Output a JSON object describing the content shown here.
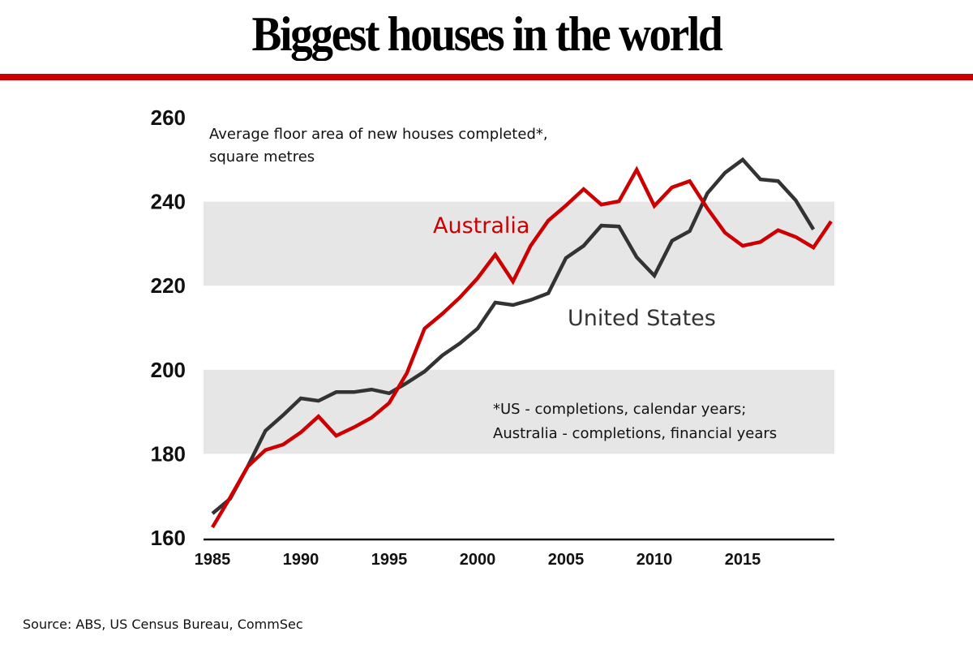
{
  "chart_data": {
    "type": "line",
    "title": "Biggest houses in the world",
    "subtitle": "Average floor area of new houses completed*, square metres",
    "xlabel": "",
    "ylabel": "square metres",
    "ylim": [
      160,
      260
    ],
    "xlim": [
      1985,
      2020
    ],
    "yticks": [
      160,
      180,
      200,
      220,
      240,
      260
    ],
    "xticks": [
      1985,
      1990,
      1995,
      2000,
      2005,
      2010,
      2015
    ],
    "grid": "alternating shaded bands 180-200 and 220-240",
    "legend": "inline labels",
    "series": [
      {
        "name": "Australia",
        "color": "#cc0000",
        "x": [
          1985,
          1986,
          1987,
          1988,
          1989,
          1990,
          1991,
          1992,
          1993,
          1994,
          1995,
          1996,
          1997,
          1998,
          1999,
          2000,
          2001,
          2002,
          2003,
          2004,
          2005,
          2006,
          2007,
          2008,
          2009,
          2010,
          2011,
          2012,
          2013,
          2014,
          2015,
          2016,
          2017,
          2018,
          2019,
          2020
        ],
        "values": [
          162.5,
          169.6,
          177.0,
          180.9,
          182.2,
          185.1,
          188.9,
          184.3,
          186.3,
          188.6,
          192.1,
          199.2,
          209.8,
          213.3,
          217.2,
          221.8,
          227.4,
          221.0,
          229.5,
          235.5,
          239.1,
          243.0,
          239.3,
          240.1,
          247.6,
          239.0,
          243.4,
          244.9,
          238.4,
          232.6,
          229.5,
          230.4,
          233.2,
          231.6,
          229.1,
          235.3
        ]
      },
      {
        "name": "United States",
        "color": "#333333",
        "x": [
          1985,
          1986,
          1987,
          1988,
          1989,
          1990,
          1991,
          1992,
          1993,
          1994,
          1995,
          1996,
          1997,
          1998,
          1999,
          2000,
          2001,
          2002,
          2003,
          2004,
          2005,
          2006,
          2007,
          2008,
          2009,
          2010,
          2011,
          2012,
          2013,
          2014,
          2015,
          2016,
          2017,
          2018,
          2019
        ],
        "values": [
          165.8,
          169.3,
          177.0,
          185.5,
          189.2,
          193.2,
          192.6,
          194.7,
          194.7,
          195.3,
          194.4,
          196.9,
          199.6,
          203.4,
          206.3,
          209.8,
          216.0,
          215.4,
          216.6,
          218.2,
          226.6,
          229.5,
          234.3,
          234.1,
          226.8,
          222.4,
          230.7,
          233.0,
          242.0,
          246.9,
          250.0,
          245.3,
          244.9,
          240.3,
          233.4
        ]
      }
    ],
    "annotations": {
      "subtitle_lines": [
        "Average floor area of new houses completed*,",
        "square metres"
      ],
      "footnote_lines": [
        "*US - completions, calendar years;",
        "Australia - completions, financial years"
      ],
      "australia_label": "Australia",
      "us_label": "United States"
    },
    "source": "Source: ABS, US Census Bureau, CommSec"
  },
  "colors": {
    "accent": "#cc0000",
    "band": "#e6e6e6",
    "us_line": "#333333"
  }
}
